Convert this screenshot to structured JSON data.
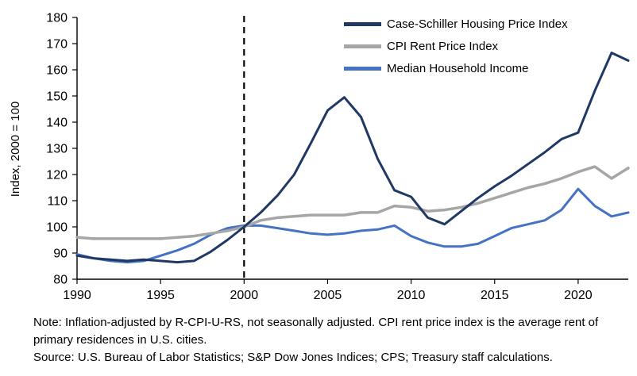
{
  "chart_data": {
    "type": "line",
    "title": "",
    "xlabel": "",
    "ylabel": "Index, 2000 = 100",
    "xlim": [
      1990,
      2023
    ],
    "ylim": [
      80,
      180
    ],
    "xticks": [
      1990,
      1995,
      2000,
      2005,
      2010,
      2015,
      2020
    ],
    "yticks": [
      80,
      90,
      100,
      110,
      120,
      130,
      140,
      150,
      160,
      170,
      180
    ],
    "grid": false,
    "legend_position": "top-right-inside",
    "vline": {
      "x": 2000,
      "style": "dashed",
      "color": "#000000"
    },
    "x": [
      1990,
      1991,
      1992,
      1993,
      1994,
      1995,
      1996,
      1997,
      1998,
      1999,
      2000,
      2001,
      2002,
      2003,
      2004,
      2005,
      2006,
      2007,
      2008,
      2009,
      2010,
      2011,
      2012,
      2013,
      2014,
      2015,
      2016,
      2017,
      2018,
      2019,
      2020,
      2021,
      2022,
      2023
    ],
    "series": [
      {
        "name": "Case-Schiller Housing Price Index",
        "color": "#1f3864",
        "width": 3,
        "values": [
          89,
          88,
          87.5,
          87,
          87.5,
          87,
          86.5,
          87,
          90.5,
          95,
          100,
          105.5,
          112,
          120,
          132,
          144.5,
          149.5,
          142,
          126,
          114,
          111.5,
          103.5,
          101,
          106,
          111,
          115.5,
          119.5,
          124,
          128.5,
          133.5,
          136,
          152,
          166.5,
          163.5
        ]
      },
      {
        "name": "CPI Rent Price Index",
        "color": "#a6a6a6",
        "width": 3.5,
        "values": [
          96,
          95.5,
          95.5,
          95.5,
          95.5,
          95.5,
          96,
          96.5,
          97.5,
          98.5,
          100,
          102.5,
          103.5,
          104,
          104.5,
          104.5,
          104.5,
          105.5,
          105.5,
          108,
          107.5,
          106,
          106.5,
          107.5,
          109,
          111,
          113,
          115,
          116.5,
          118.5,
          121,
          123,
          118.5,
          122.5
        ]
      },
      {
        "name": "Median Household Income",
        "color": "#4472c4",
        "width": 3,
        "values": [
          89.5,
          88,
          87,
          86.5,
          87,
          89,
          91,
          93.5,
          97,
          99.5,
          100.5,
          100.5,
          99.5,
          98.5,
          97.5,
          97,
          97.5,
          98.5,
          99,
          100.5,
          96.5,
          94,
          92.5,
          92.5,
          93.5,
          96.5,
          99.5,
          101,
          102.5,
          106.5,
          114.5,
          108,
          104,
          105.5
        ]
      }
    ]
  },
  "notes": {
    "note": "Note: Inflation-adjusted by R-CPI-U-RS, not seasonally adjusted. CPI rent price index is the average rent of primary residences in U.S. cities.",
    "source": "Source: U.S. Bureau of Labor Statistics; S&P Dow Jones Indices; CPS; Treasury staff calculations."
  }
}
